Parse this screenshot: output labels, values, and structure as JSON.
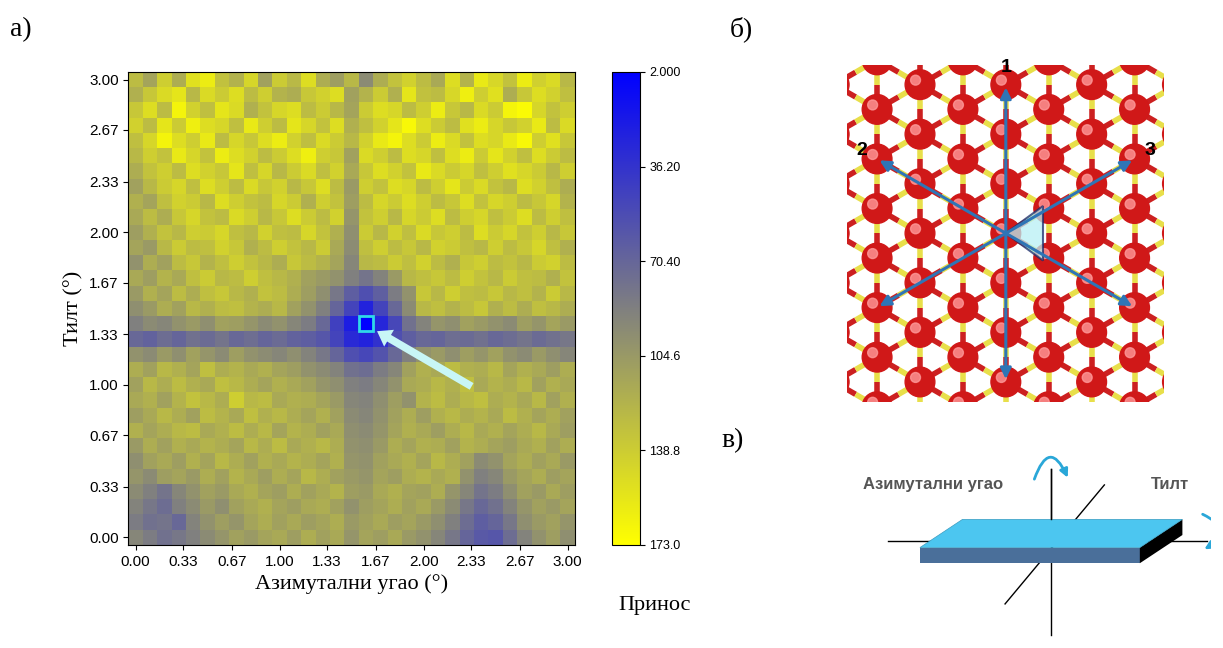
{
  "chart_data": {
    "type": "heatmap",
    "panel_label": "а)",
    "x_label": "Азимутални угао (°)",
    "y_label": "Тилт (°)",
    "x": [
      0,
      0.1,
      0.2,
      0.3,
      0.4,
      0.5,
      0.6,
      0.7,
      0.8,
      0.9,
      1,
      1.1,
      1.2,
      1.3,
      1.4,
      1.5,
      1.6,
      1.7,
      1.8,
      1.9,
      2,
      2.1,
      2.2,
      2.3,
      2.4,
      2.5,
      2.6,
      2.7,
      2.8,
      2.9,
      3
    ],
    "y": [
      0,
      0.1,
      0.2,
      0.3,
      0.4,
      0.5,
      0.6,
      0.7,
      0.8,
      0.9,
      1,
      1.1,
      1.2,
      1.3,
      1.4,
      1.5,
      1.6,
      1.7,
      1.8,
      1.9,
      2,
      2.1,
      2.2,
      2.3,
      2.4,
      2.5,
      2.6,
      2.7,
      2.8,
      2.9,
      3
    ],
    "cells": [
      [
        92,
        85,
        78,
        82,
        88,
        95,
        102,
        110,
        105,
        112,
        115,
        108,
        118,
        110,
        115,
        102,
        112,
        108,
        115,
        105,
        100,
        92,
        82,
        70,
        62,
        60,
        75,
        90,
        100,
        108,
        98
      ],
      [
        85,
        78,
        80,
        72,
        90,
        100,
        108,
        102,
        112,
        118,
        110,
        115,
        108,
        112,
        118,
        105,
        110,
        115,
        108,
        112,
        105,
        98,
        88,
        75,
        65,
        70,
        82,
        98,
        105,
        110,
        102
      ],
      [
        90,
        82,
        75,
        88,
        95,
        105,
        98,
        110,
        115,
        120,
        112,
        108,
        115,
        118,
        110,
        100,
        108,
        112,
        118,
        110,
        115,
        105,
        95,
        82,
        72,
        78,
        90,
        102,
        110,
        105,
        112
      ],
      [
        95,
        88,
        80,
        92,
        100,
        110,
        105,
        115,
        120,
        112,
        108,
        118,
        110,
        115,
        122,
        108,
        105,
        115,
        120,
        112,
        110,
        118,
        102,
        92,
        80,
        85,
        98,
        110,
        105,
        115,
        108
      ],
      [
        102,
        95,
        108,
        112,
        105,
        118,
        110,
        122,
        115,
        108,
        118,
        112,
        125,
        118,
        110,
        105,
        102,
        112,
        108,
        118,
        122,
        115,
        120,
        100,
        88,
        92,
        105,
        112,
        118,
        108,
        112
      ],
      [
        98,
        110,
        115,
        108,
        120,
        112,
        125,
        118,
        110,
        120,
        115,
        122,
        118,
        112,
        120,
        102,
        100,
        110,
        115,
        120,
        112,
        125,
        118,
        110,
        95,
        100,
        112,
        118,
        110,
        115,
        105
      ],
      [
        105,
        118,
        110,
        120,
        115,
        122,
        118,
        112,
        125,
        118,
        128,
        115,
        120,
        125,
        118,
        100,
        98,
        105,
        118,
        112,
        120,
        118,
        110,
        122,
        118,
        112,
        108,
        115,
        120,
        110,
        118
      ],
      [
        120,
        112,
        118,
        125,
        128,
        115,
        120,
        128,
        118,
        125,
        112,
        122,
        118,
        110,
        115,
        98,
        95,
        102,
        112,
        120,
        115,
        108,
        118,
        125,
        115,
        120,
        112,
        118,
        125,
        115,
        108
      ],
      [
        108,
        115,
        125,
        118,
        110,
        128,
        122,
        115,
        130,
        120,
        125,
        118,
        112,
        120,
        110,
        95,
        92,
        100,
        110,
        118,
        108,
        120,
        125,
        118,
        122,
        115,
        128,
        120,
        112,
        118,
        110
      ],
      [
        115,
        120,
        110,
        122,
        132,
        125,
        118,
        140,
        125,
        128,
        115,
        120,
        118,
        112,
        105,
        92,
        90,
        98,
        108,
        100,
        122,
        128,
        118,
        125,
        130,
        118,
        122,
        115,
        125,
        110,
        120
      ],
      [
        110,
        125,
        118,
        128,
        120,
        115,
        130,
        125,
        118,
        112,
        120,
        115,
        110,
        102,
        98,
        88,
        85,
        92,
        100,
        115,
        118,
        125,
        120,
        130,
        115,
        122,
        118,
        125,
        110,
        120,
        115
      ],
      [
        118,
        110,
        125,
        120,
        112,
        130,
        118,
        122,
        115,
        120,
        112,
        108,
        100,
        95,
        90,
        78,
        75,
        85,
        92,
        110,
        120,
        115,
        128,
        120,
        118,
        125,
        112,
        120,
        115,
        108,
        118
      ],
      [
        100,
        95,
        105,
        98,
        110,
        102,
        95,
        108,
        100,
        96,
        92,
        98,
        90,
        82,
        70,
        55,
        50,
        58,
        72,
        88,
        100,
        105,
        98,
        108,
        102,
        110,
        100,
        95,
        105,
        98,
        92
      ],
      [
        72,
        68,
        75,
        70,
        78,
        74,
        80,
        72,
        76,
        70,
        74,
        68,
        65,
        60,
        48,
        30,
        25,
        35,
        55,
        65,
        72,
        70,
        76,
        74,
        78,
        72,
        75,
        80,
        74,
        78,
        82
      ],
      [
        88,
        95,
        92,
        100,
        105,
        98,
        110,
        108,
        102,
        95,
        100,
        92,
        85,
        72,
        45,
        22,
        2,
        28,
        50,
        78,
        90,
        102,
        98,
        110,
        105,
        100,
        95,
        108,
        102,
        112,
        105
      ],
      [
        98,
        105,
        118,
        110,
        125,
        120,
        128,
        130,
        122,
        118,
        125,
        110,
        100,
        88,
        70,
        48,
        25,
        48,
        72,
        95,
        125,
        130,
        122,
        128,
        135,
        120,
        128,
        118,
        130,
        125,
        118
      ],
      [
        105,
        120,
        112,
        128,
        118,
        130,
        135,
        125,
        120,
        132,
        128,
        118,
        108,
        98,
        82,
        65,
        55,
        66,
        85,
        100,
        135,
        125,
        140,
        130,
        128,
        135,
        125,
        130,
        122,
        138,
        125
      ],
      [
        115,
        108,
        122,
        115,
        130,
        138,
        125,
        128,
        140,
        130,
        125,
        120,
        110,
        105,
        100,
        88,
        80,
        90,
        105,
        125,
        130,
        135,
        128,
        140,
        132,
        125,
        138,
        130,
        128,
        120,
        132
      ],
      [
        100,
        118,
        110,
        128,
        135,
        122,
        130,
        140,
        132,
        125,
        118,
        135,
        128,
        122,
        112,
        92,
        125,
        128,
        138,
        130,
        142,
        128,
        120,
        135,
        140,
        128,
        132,
        125,
        138,
        142,
        128
      ],
      [
        112,
        105,
        125,
        138,
        128,
        130,
        142,
        135,
        120,
        128,
        140,
        132,
        125,
        138,
        115,
        96,
        130,
        140,
        128,
        135,
        125,
        142,
        138,
        130,
        125,
        140,
        128,
        135,
        145,
        130,
        120
      ],
      [
        108,
        120,
        132,
        125,
        140,
        138,
        145,
        130,
        125,
        142,
        130,
        128,
        145,
        132,
        120,
        98,
        138,
        125,
        142,
        130,
        148,
        135,
        140,
        128,
        150,
        138,
        145,
        132,
        140,
        125,
        135
      ],
      [
        115,
        128,
        118,
        135,
        145,
        132,
        128,
        148,
        140,
        125,
        135,
        150,
        138,
        128,
        142,
        102,
        132,
        140,
        125,
        145,
        138,
        150,
        128,
        140,
        145,
        130,
        138,
        150,
        128,
        140,
        130
      ],
      [
        120,
        112,
        130,
        142,
        138,
        125,
        150,
        140,
        132,
        128,
        145,
        138,
        120,
        140,
        132,
        108,
        128,
        145,
        138,
        150,
        140,
        128,
        135,
        150,
        132,
        145,
        140,
        128,
        135,
        145,
        122
      ],
      [
        110,
        125,
        138,
        145,
        130,
        150,
        140,
        128,
        148,
        135,
        142,
        125,
        135,
        150,
        128,
        105,
        140,
        132,
        150,
        145,
        128,
        140,
        155,
        138,
        148,
        132,
        125,
        150,
        142,
        130,
        118
      ],
      [
        118,
        132,
        140,
        128,
        150,
        142,
        135,
        155,
        130,
        145,
        125,
        138,
        148,
        130,
        142,
        115,
        135,
        150,
        142,
        132,
        158,
        148,
        138,
        145,
        130,
        140,
        152,
        145,
        138,
        125,
        140
      ],
      [
        125,
        140,
        132,
        158,
        145,
        132,
        160,
        150,
        142,
        128,
        138,
        150,
        162,
        140,
        135,
        110,
        148,
        140,
        128,
        150,
        145,
        130,
        150,
        160,
        138,
        155,
        142,
        130,
        150,
        138,
        128
      ],
      [
        130,
        145,
        165,
        150,
        140,
        158,
        128,
        145,
        135,
        150,
        160,
        142,
        130,
        148,
        138,
        125,
        142,
        158,
        165,
        150,
        138,
        160,
        148,
        132,
        150,
        145,
        158,
        168,
        140,
        152,
        135
      ],
      [
        142,
        128,
        155,
        138,
        162,
        150,
        145,
        130,
        158,
        140,
        128,
        155,
        145,
        132,
        150,
        120,
        130,
        142,
        155,
        168,
        150,
        138,
        128,
        152,
        160,
        145,
        135,
        142,
        158,
        128,
        148
      ],
      [
        135,
        150,
        128,
        165,
        142,
        130,
        155,
        148,
        120,
        132,
        145,
        150,
        128,
        138,
        125,
        112,
        138,
        150,
        145,
        128,
        140,
        160,
        135,
        125,
        148,
        138,
        165,
        170,
        145,
        132,
        140
      ],
      [
        120,
        135,
        148,
        155,
        125,
        148,
        138,
        150,
        128,
        140,
        122,
        118,
        135,
        142,
        150,
        110,
        122,
        138,
        120,
        155,
        131,
        128,
        146,
        162,
        140,
        152,
        118,
        135,
        150,
        142,
        130
      ],
      [
        128,
        112,
        140,
        118,
        152,
        160,
        131,
        121,
        145,
        110,
        138,
        126,
        150,
        118,
        108,
        125,
        95,
        118,
        132,
        142,
        128,
        115,
        150,
        122,
        158,
        146,
        132,
        160,
        141,
        148,
        125
      ]
    ],
    "xlim": [
      -0.05,
      3.05
    ],
    "ylim": [
      -0.05,
      3.05
    ],
    "xticks": [
      {
        "value": 0,
        "label": "0.00"
      },
      0.33,
      0.67,
      {
        "value": 1,
        "label": "1.00"
      },
      1.33,
      1.67,
      {
        "value": 2,
        "label": "2.00"
      },
      2.33,
      2.67,
      {
        "value": 3,
        "label": "3.00"
      }
    ],
    "yticks": [
      {
        "value": 0,
        "label": "0.00"
      },
      0.33,
      0.67,
      {
        "value": 1,
        "label": "1.00"
      },
      1.33,
      1.67,
      {
        "value": 2,
        "label": "2.00"
      },
      2.33,
      2.67,
      {
        "value": 3,
        "label": "3.00"
      }
    ],
    "colorbar": {
      "label": "Принос",
      "range": [
        2,
        173
      ],
      "ticks": [
        {
          "value": 2,
          "label": "2.000"
        },
        {
          "value": 36.2,
          "label": "36.20"
        },
        {
          "value": 70.4,
          "label": "70.40"
        },
        104.6,
        138.8,
        {
          "value": 173,
          "label": "173.0"
        }
      ]
    }
  },
  "diagram": {
    "lattice": {
      "panel_label": "б)",
      "directions": [
        "1",
        "2",
        "3"
      ]
    },
    "rotation": {
      "panel_label": "в)",
      "azimuth_label": "Азимутални угао",
      "tilt_label": "Тилт"
    }
  }
}
